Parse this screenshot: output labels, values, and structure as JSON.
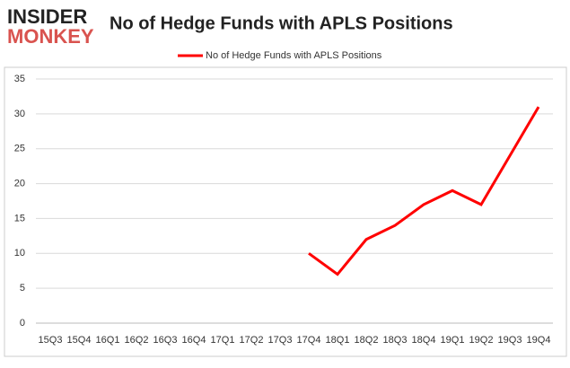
{
  "brand": {
    "line1": "INSIDER",
    "line2": "MONKEY"
  },
  "chart_data": {
    "type": "line",
    "title": "No of Hedge Funds with APLS Positions",
    "categories": [
      "15Q3",
      "15Q4",
      "16Q1",
      "16Q2",
      "16Q3",
      "16Q4",
      "17Q1",
      "17Q2",
      "17Q3",
      "17Q4",
      "18Q1",
      "18Q2",
      "18Q3",
      "18Q4",
      "19Q1",
      "19Q2",
      "19Q3",
      "19Q4"
    ],
    "series": [
      {
        "name": "No of Hedge Funds with APLS Positions",
        "color": "#ff0000",
        "values": [
          null,
          null,
          null,
          null,
          null,
          null,
          null,
          null,
          null,
          10,
          7,
          12,
          14,
          17,
          19,
          17,
          24,
          31
        ]
      }
    ],
    "ylim": [
      0,
      35
    ],
    "yticks": [
      0,
      5,
      10,
      15,
      20,
      25,
      30,
      35
    ],
    "grid": true,
    "legend": "top"
  }
}
